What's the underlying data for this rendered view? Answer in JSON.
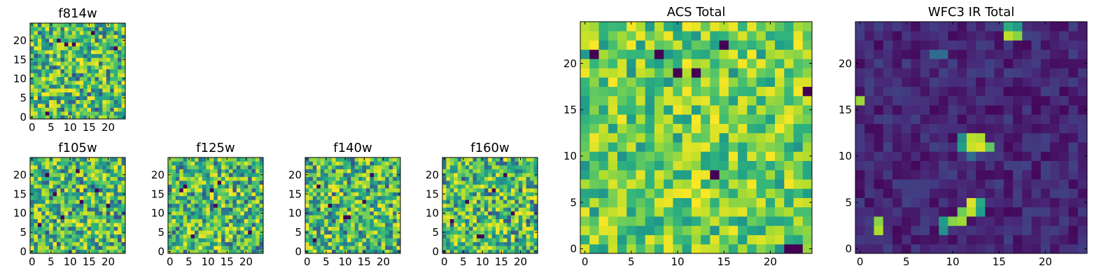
{
  "chart_data": [
    {
      "id": "f814w",
      "type": "heatmap",
      "title": "f814w",
      "colormap": "viridis",
      "palette": "mid",
      "grid": [
        25,
        25
      ],
      "xlim": [
        0,
        24
      ],
      "ylim": [
        0,
        24
      ],
      "xticks": [
        "0",
        "5",
        "10",
        "15",
        "20"
      ],
      "yticks": [
        "0",
        "5",
        "10",
        "15",
        "20"
      ],
      "features": [],
      "outliers": [
        [
          9,
          19
        ],
        [
          11,
          19
        ],
        [
          7,
          20
        ],
        [
          16,
          22
        ],
        [
          22,
          18
        ],
        [
          4,
          1
        ]
      ]
    },
    {
      "id": "f105w",
      "type": "heatmap",
      "title": "f105w",
      "colormap": "viridis",
      "palette": "mid",
      "grid": [
        25,
        25
      ],
      "xlim": [
        0,
        24
      ],
      "ylim": [
        0,
        24
      ],
      "xticks": [
        "0",
        "5",
        "10",
        "15",
        "20"
      ],
      "yticks": [
        "0",
        "5",
        "10",
        "15",
        "20"
      ],
      "features": [],
      "outliers": [
        [
          4,
          20
        ],
        [
          12,
          21
        ],
        [
          17,
          16
        ],
        [
          2,
          7
        ],
        [
          13,
          13
        ],
        [
          8,
          9
        ],
        [
          20,
          12
        ],
        [
          6,
          15
        ]
      ]
    },
    {
      "id": "f125w",
      "type": "heatmap",
      "title": "f125w",
      "colormap": "viridis",
      "palette": "mid",
      "grid": [
        25,
        25
      ],
      "xlim": [
        0,
        24
      ],
      "ylim": [
        0,
        24
      ],
      "xticks": [
        "0",
        "5",
        "10",
        "15",
        "20"
      ],
      "yticks": [
        "0",
        "5",
        "10",
        "15",
        "20"
      ],
      "features": [],
      "outliers": [
        [
          4,
          17
        ],
        [
          3,
          16
        ],
        [
          11,
          16
        ],
        [
          12,
          12
        ],
        [
          6,
          4
        ],
        [
          13,
          18
        ],
        [
          21,
          5
        ]
      ]
    },
    {
      "id": "f140w",
      "type": "heatmap",
      "title": "f140w",
      "colormap": "viridis",
      "palette": "mid",
      "grid": [
        25,
        25
      ],
      "xlim": [
        0,
        24
      ],
      "ylim": [
        0,
        24
      ],
      "xticks": [
        "0",
        "5",
        "10",
        "15",
        "20"
      ],
      "yticks": [
        "0",
        "5",
        "10",
        "15",
        "20"
      ],
      "features": [],
      "outliers": [
        [
          10,
          9
        ],
        [
          11,
          9
        ],
        [
          3,
          17
        ],
        [
          17,
          20
        ],
        [
          2,
          3
        ],
        [
          15,
          13
        ],
        [
          6,
          12
        ]
      ]
    },
    {
      "id": "f160w",
      "type": "heatmap",
      "title": "f160w",
      "colormap": "viridis",
      "palette": "mid",
      "grid": [
        25,
        25
      ],
      "xlim": [
        0,
        24
      ],
      "ylim": [
        0,
        24
      ],
      "xticks": [
        "0",
        "5",
        "10",
        "15",
        "20"
      ],
      "yticks": [
        "0",
        "5",
        "10",
        "15",
        "20"
      ],
      "features": [],
      "outliers": [
        [
          9,
          4
        ],
        [
          10,
          4
        ],
        [
          6,
          13
        ],
        [
          16,
          20
        ],
        [
          2,
          8
        ],
        [
          13,
          16
        ],
        [
          18,
          10
        ]
      ]
    },
    {
      "id": "acs-total",
      "type": "heatmap",
      "title": "ACS Total",
      "colormap": "viridis",
      "palette": "bright",
      "grid": [
        25,
        25
      ],
      "xlim": [
        0,
        24
      ],
      "ylim": [
        0,
        24
      ],
      "xticks": [
        "0",
        "5",
        "10",
        "15",
        "20"
      ],
      "yticks": [
        "0",
        "5",
        "10",
        "15",
        "20"
      ],
      "features": [],
      "outliers": [
        [
          1,
          21
        ],
        [
          8,
          21
        ],
        [
          10,
          19
        ],
        [
          12,
          19
        ],
        [
          15,
          22
        ],
        [
          24,
          17
        ],
        [
          14,
          8
        ],
        [
          22,
          0
        ],
        [
          23,
          0
        ]
      ]
    },
    {
      "id": "wfc3-ir-total",
      "type": "heatmap",
      "title": "WFC3 IR Total",
      "colormap": "viridis",
      "palette": "dark",
      "grid": [
        25,
        25
      ],
      "xlim": [
        0,
        24
      ],
      "ylim": [
        0,
        24
      ],
      "xticks": [
        "0",
        "5",
        "10",
        "15",
        "20"
      ],
      "yticks": [
        "0",
        "5",
        "10",
        "15",
        "20"
      ],
      "features": [
        {
          "x": 16,
          "y": 23,
          "v": 0.9
        },
        {
          "x": 17,
          "y": 23,
          "v": 0.82
        },
        {
          "x": 16,
          "y": 24,
          "v": 0.62
        },
        {
          "x": 17,
          "y": 24,
          "v": 0.55
        },
        {
          "x": 0,
          "y": 16,
          "v": 0.85
        },
        {
          "x": 12,
          "y": 11,
          "v": 0.92
        },
        {
          "x": 13,
          "y": 11,
          "v": 0.95
        },
        {
          "x": 12,
          "y": 12,
          "v": 0.9
        },
        {
          "x": 13,
          "y": 12,
          "v": 0.88
        },
        {
          "x": 11,
          "y": 11,
          "v": 0.55
        },
        {
          "x": 11,
          "y": 12,
          "v": 0.5
        },
        {
          "x": 14,
          "y": 11,
          "v": 0.75
        },
        {
          "x": 12,
          "y": 10,
          "v": 0.35
        },
        {
          "x": 2,
          "y": 2,
          "v": 0.88
        },
        {
          "x": 2,
          "y": 3,
          "v": 0.82
        },
        {
          "x": 12,
          "y": 4,
          "v": 0.9
        },
        {
          "x": 12,
          "y": 5,
          "v": 0.95
        },
        {
          "x": 11,
          "y": 3,
          "v": 0.86
        },
        {
          "x": 11,
          "y": 4,
          "v": 0.78
        },
        {
          "x": 10,
          "y": 3,
          "v": 0.82
        },
        {
          "x": 13,
          "y": 5,
          "v": 0.6
        },
        {
          "x": 13,
          "y": 4,
          "v": 0.55
        },
        {
          "x": 9,
          "y": 2,
          "v": 0.5
        },
        {
          "x": 9,
          "y": 3,
          "v": 0.55
        },
        {
          "x": 8,
          "y": 21,
          "v": 0.35
        },
        {
          "x": 9,
          "y": 21,
          "v": 0.35
        }
      ],
      "outliers": []
    }
  ]
}
